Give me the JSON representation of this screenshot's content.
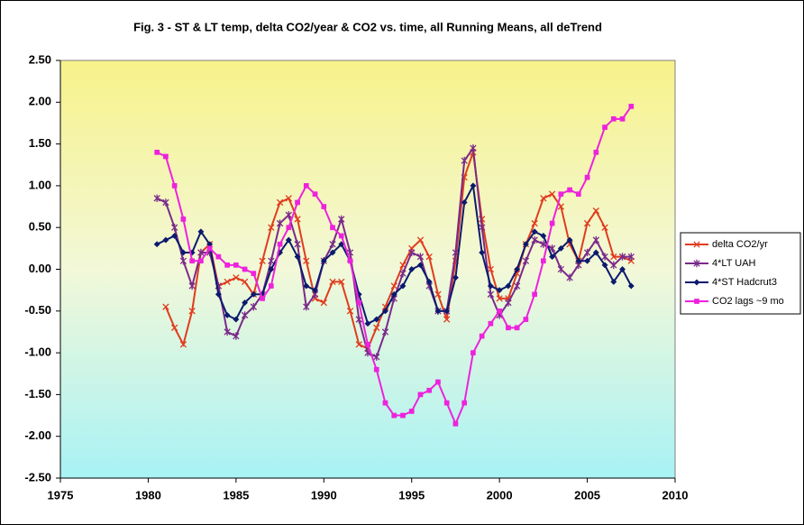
{
  "chart_data": {
    "type": "line",
    "title": "Fig. 3 - ST & LT temp, delta CO2/year & CO2 vs. time, all Running Means, all deTrend",
    "x": [
      1980.5,
      1981,
      1981.5,
      1982,
      1982.5,
      1983,
      1983.5,
      1984,
      1984.5,
      1985,
      1985.5,
      1986,
      1986.5,
      1987,
      1987.5,
      1988,
      1988.5,
      1989,
      1989.5,
      1990,
      1990.5,
      1991,
      1991.5,
      1992,
      1992.5,
      1993,
      1993.5,
      1994,
      1994.5,
      1995,
      1995.5,
      1996,
      1996.5,
      1997,
      1997.5,
      1998,
      1998.5,
      1999,
      1999.5,
      2000,
      2000.5,
      2001,
      2001.5,
      2002,
      2002.5,
      2003,
      2003.5,
      2004,
      2004.5,
      2005,
      2005.5,
      2006,
      2006.5,
      2007,
      2007.5
    ],
    "series": [
      {
        "name": "delta CO2/yr",
        "color": "#e03c1e",
        "marker": "x",
        "values": [
          null,
          -0.45,
          -0.7,
          -0.9,
          -0.5,
          0.2,
          0.3,
          -0.2,
          -0.15,
          -0.1,
          -0.15,
          -0.3,
          0.1,
          0.5,
          0.8,
          0.85,
          0.6,
          0.1,
          -0.35,
          -0.4,
          -0.15,
          -0.15,
          -0.5,
          -0.9,
          -0.95,
          -0.7,
          -0.45,
          -0.2,
          0.05,
          0.25,
          0.35,
          0.15,
          -0.3,
          -0.6,
          0.1,
          1.1,
          1.4,
          0.6,
          0,
          -0.35,
          -0.35,
          -0.05,
          0.3,
          0.55,
          0.85,
          0.9,
          0.75,
          0.3,
          0.1,
          0.55,
          0.7,
          0.5,
          0.15,
          0.15,
          0.1
        ]
      },
      {
        "name": "4*LT UAH",
        "color": "#7a2a8a",
        "marker": "star",
        "values": [
          0.85,
          0.8,
          0.5,
          0.1,
          -0.2,
          0.2,
          0.2,
          -0.2,
          -0.75,
          -0.8,
          -0.55,
          -0.45,
          -0.3,
          0.1,
          0.55,
          0.65,
          0.3,
          -0.45,
          -0.3,
          0.1,
          0.3,
          0.6,
          0.2,
          -0.6,
          -1.0,
          -1.05,
          -0.75,
          -0.35,
          -0.05,
          0.2,
          0.15,
          -0.2,
          -0.5,
          -0.5,
          0.2,
          1.3,
          1.45,
          0.5,
          -0.3,
          -0.55,
          -0.4,
          -0.2,
          0.1,
          0.35,
          0.3,
          0.25,
          0,
          -0.1,
          0.05,
          0.2,
          0.35,
          0.15,
          0.05,
          0.15,
          0.15
        ]
      },
      {
        "name": "4*ST Hadcrut3",
        "color": "#0b1a6e",
        "marker": "diamond",
        "values": [
          0.3,
          0.35,
          0.4,
          0.2,
          0.2,
          0.45,
          0.3,
          -0.3,
          -0.55,
          -0.6,
          -0.4,
          -0.3,
          -0.3,
          0,
          0.2,
          0.35,
          0.15,
          -0.2,
          -0.25,
          0.1,
          0.2,
          0.3,
          0.1,
          -0.3,
          -0.65,
          -0.6,
          -0.5,
          -0.3,
          -0.2,
          0,
          0.05,
          -0.15,
          -0.5,
          -0.5,
          -0.1,
          0.8,
          1.0,
          0.2,
          -0.2,
          -0.25,
          -0.2,
          0,
          0.3,
          0.45,
          0.4,
          0.15,
          0.25,
          0.35,
          0.1,
          0.1,
          0.2,
          0.05,
          -0.15,
          0,
          -0.2
        ]
      },
      {
        "name": "CO2 lags ~9 mo",
        "color": "#ee22dd",
        "marker": "square",
        "values": [
          1.4,
          1.35,
          1.0,
          0.6,
          0.1,
          0.1,
          0.25,
          0.15,
          0.05,
          0.05,
          0,
          -0.05,
          -0.35,
          -0.2,
          0.3,
          0.5,
          0.8,
          1.0,
          0.9,
          0.75,
          0.5,
          0.4,
          0.1,
          -0.4,
          -0.9,
          -1.2,
          -1.6,
          -1.75,
          -1.75,
          -1.7,
          -1.5,
          -1.45,
          -1.35,
          -1.6,
          -1.85,
          -1.6,
          -1.0,
          -0.8,
          -0.65,
          -0.5,
          -0.7,
          -0.7,
          -0.6,
          -0.3,
          0.1,
          0.55,
          0.9,
          0.95,
          0.9,
          1.1,
          1.4,
          1.7,
          1.8,
          1.8,
          1.95
        ]
      }
    ],
    "xlim": [
      1975,
      2010
    ],
    "xticks": [
      1975,
      1980,
      1985,
      1990,
      1995,
      2000,
      2005,
      2010
    ],
    "ylim": [
      -2.5,
      2.5
    ],
    "yticks": [
      {
        "value": -2.5,
        "label": "-2.50"
      },
      {
        "value": -2,
        "label": "-2.00"
      },
      {
        "value": -1.5,
        "label": "-1.50"
      },
      {
        "value": -1,
        "label": "-1.00"
      },
      {
        "value": -0.5,
        "label": "-0.50"
      },
      {
        "value": 0,
        "label": "0.00"
      },
      {
        "value": 0.5,
        "label": "0.50"
      },
      {
        "value": 1,
        "label": "1.00"
      },
      {
        "value": 1.5,
        "label": "1.50"
      },
      {
        "value": 2,
        "label": "2.00"
      },
      {
        "value": 2.5,
        "label": "2.50"
      }
    ],
    "legend": "right"
  }
}
